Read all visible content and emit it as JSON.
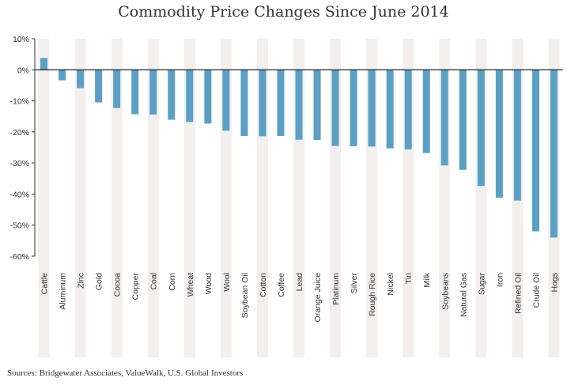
{
  "chart_data": {
    "type": "bar",
    "title": "Commodity Price Changes Since June 2014",
    "xlabel": "",
    "ylabel": "",
    "ylim": [
      -60,
      10
    ],
    "yticks": [
      10,
      0,
      -10,
      -20,
      -30,
      -40,
      -50,
      -60
    ],
    "ytick_labels": [
      "10%",
      "0%",
      "-10%",
      "-20%",
      "-30%",
      "-40%",
      "-50%",
      "-60%"
    ],
    "grid": false,
    "legend": "none",
    "categories": [
      "Cattle",
      "Aluminum",
      "Zinc",
      "Gold",
      "Cocoa",
      "Copper",
      "Coal",
      "Corn",
      "Wheat",
      "Wood",
      "Wool",
      "Soybean Oil",
      "Cotton",
      "Coffee",
      "Lead",
      "Orange Juice",
      "Platinum",
      "Silver",
      "Rough Rice",
      "Nickel",
      "Tin",
      "Milk",
      "Soybeans",
      "Natural Gas",
      "Sugar",
      "Iron",
      "Refined Oil",
      "Crude Oil",
      "Hogs"
    ],
    "values": [
      3.8,
      -3.4,
      -5.9,
      -10.5,
      -12.3,
      -14.3,
      -14.4,
      -16.1,
      -16.8,
      -17.3,
      -19.6,
      -21.3,
      -21.4,
      -21.3,
      -22.5,
      -22.6,
      -24.5,
      -24.6,
      -24.7,
      -25.3,
      -25.6,
      -26.8,
      -30.8,
      -32.2,
      -37.4,
      -41.2,
      -42.1,
      -52.0,
      -54.0
    ],
    "bar_color": "#5b9fc4",
    "band_color": "#f2efee"
  },
  "source_note": "Sources:  Bridgewater Associates, ValueWalk, U.S. Global Investors"
}
